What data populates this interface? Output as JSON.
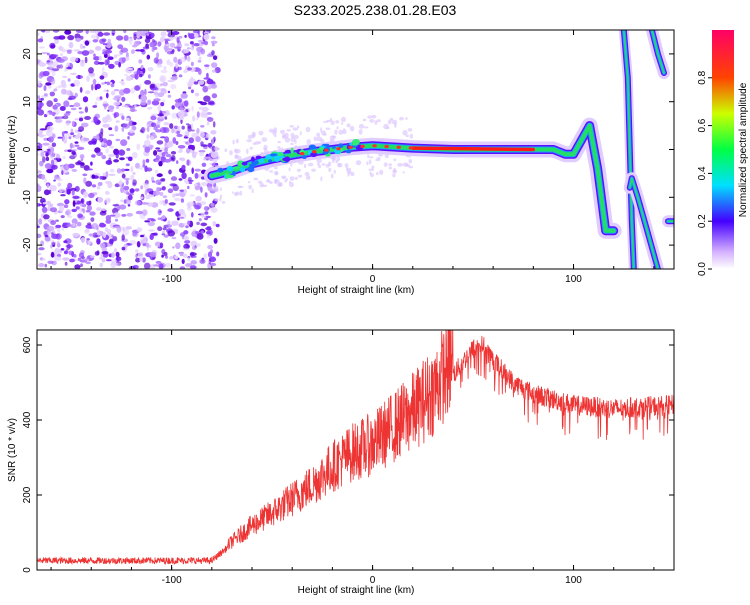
{
  "title": "S233.2025.238.01.28.E03",
  "colors": {
    "snr_line": "#ee3333",
    "ridge": "#ff2020",
    "axis": "#000000"
  },
  "chart_data": [
    {
      "type": "heatmap",
      "name": "spectrogram",
      "xlabel": "Height of straight line (km)",
      "ylabel": "Frequency (Hz)",
      "xlim": [
        -167,
        150
      ],
      "ylim": [
        -25,
        25
      ],
      "x_ticks": [
        -100,
        0,
        100
      ],
      "x_tick_labels": [
        "-100",
        "0",
        "100"
      ],
      "y_ticks": [
        -20,
        -10,
        0,
        10,
        20
      ],
      "y_tick_labels": [
        "-20",
        "-10",
        "0",
        "10",
        "20"
      ],
      "noise_region_x": [
        -167,
        -80
      ],
      "ridge": {
        "x": [
          -80,
          -70,
          -60,
          -50,
          -40,
          -30,
          -20,
          -10,
          0,
          20,
          40,
          60,
          80,
          90,
          96,
          100,
          104,
          108,
          112,
          116,
          120
        ],
        "frequency": [
          -5.5,
          -4.5,
          -3,
          -2,
          -1.2,
          -0.5,
          0,
          0.5,
          0.8,
          0.3,
          0,
          0,
          0,
          0,
          -1,
          -1,
          2,
          5,
          -4,
          -17,
          -17
        ]
      },
      "colorbar": {
        "label": "Normalized spectral amplitude",
        "range": [
          0,
          1
        ],
        "ticks": [
          0.0,
          0.2,
          0.4,
          0.6,
          0.8
        ],
        "tick_labels": [
          "0.0",
          "0.2",
          "0.4",
          "0.6",
          "0.8"
        ]
      }
    },
    {
      "type": "line",
      "name": "snr",
      "xlabel": "Height of straight line (km)",
      "ylabel": "SNR (10 * v/v)",
      "xlim": [
        -167,
        150
      ],
      "ylim": [
        0,
        640
      ],
      "x_ticks": [
        -100,
        0,
        100
      ],
      "x_tick_labels": [
        "-100",
        "0",
        "100"
      ],
      "y_ticks": [
        0,
        200,
        400,
        600
      ],
      "y_tick_labels": [
        "0",
        "200",
        "400",
        "600"
      ],
      "trend": {
        "x": [
          -167,
          -80,
          -70,
          -60,
          -50,
          -40,
          -30,
          -20,
          -10,
          0,
          10,
          20,
          30,
          40,
          50,
          55,
          60,
          70,
          80,
          100,
          120,
          150
        ],
        "y": [
          25,
          25,
          70,
          110,
          140,
          175,
          210,
          255,
          290,
          310,
          350,
          390,
          440,
          520,
          590,
          600,
          560,
          500,
          470,
          440,
          430,
          440
        ]
      }
    }
  ]
}
